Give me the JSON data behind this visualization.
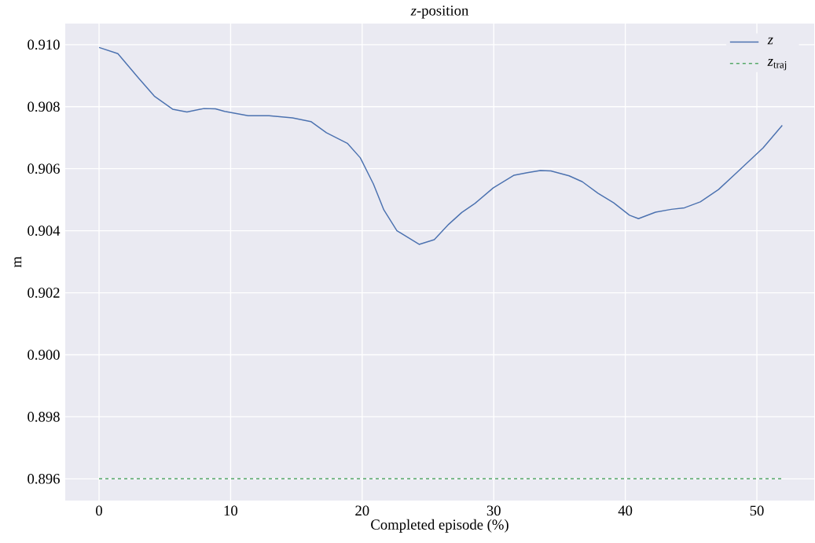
{
  "chart_data": {
    "type": "line",
    "title": "*z*-position",
    "xlabel": "Completed episode (%)",
    "ylabel": "m",
    "series": [
      {
        "name": "*z*",
        "color": "#4c72b0",
        "line_style": "solid",
        "x": [
          0,
          1.43,
          3.01,
          4.2,
          5.59,
          6.68,
          7.97,
          8.85,
          9.55,
          11.34,
          12.92,
          14.7,
          16.1,
          17.28,
          18.87,
          19.86,
          20.85,
          21.65,
          22.64,
          24.33,
          25.48,
          26.58,
          27.57,
          28.57,
          29.96,
          31.55,
          32.55,
          33.54,
          34.34,
          35.73,
          36.73,
          37.92,
          39.12,
          40.32,
          41.0,
          42.3,
          43.5,
          44.5,
          45.7,
          47.09,
          48.48,
          50.47,
          51.93
        ],
        "values": [
          0.90991,
          0.90971,
          0.90892,
          0.90834,
          0.90792,
          0.90783,
          0.90794,
          0.90793,
          0.90785,
          0.90771,
          0.90771,
          0.90764,
          0.90752,
          0.90716,
          0.90682,
          0.90635,
          0.90551,
          0.90467,
          0.904,
          0.90356,
          0.90371,
          0.90421,
          0.90459,
          0.90488,
          0.90538,
          0.90579,
          0.90587,
          0.90594,
          0.90593,
          0.90577,
          0.90558,
          0.90521,
          0.9049,
          0.9045,
          0.90439,
          0.9046,
          0.90469,
          0.90474,
          0.90493,
          0.90533,
          0.90588,
          0.90667,
          0.9074
        ]
      },
      {
        "name": "*z*$_{traj}$",
        "color": "#55a868",
        "line_style": "dashed",
        "x": [
          0,
          51.93
        ],
        "values": [
          0.896,
          0.896
        ]
      }
    ],
    "xlim": [
      -2.57,
      54.36
    ],
    "ylim": [
      0.8953,
      0.91068
    ],
    "xticks": [
      0,
      10,
      20,
      30,
      40,
      50
    ],
    "yticks": [
      {
        "value": 0.896,
        "label": "0.896"
      },
      {
        "value": 0.898,
        "label": "0.898"
      },
      {
        "value": 0.9,
        "label": "0.900"
      },
      {
        "value": 0.902,
        "label": "0.902"
      },
      {
        "value": 0.904,
        "label": "0.904"
      },
      {
        "value": 0.906,
        "label": "0.906"
      },
      {
        "value": 0.908,
        "label": "0.908"
      },
      {
        "value": 0.91,
        "label": "0.910"
      }
    ],
    "grid": true,
    "legend": "top right",
    "marker": "none"
  }
}
